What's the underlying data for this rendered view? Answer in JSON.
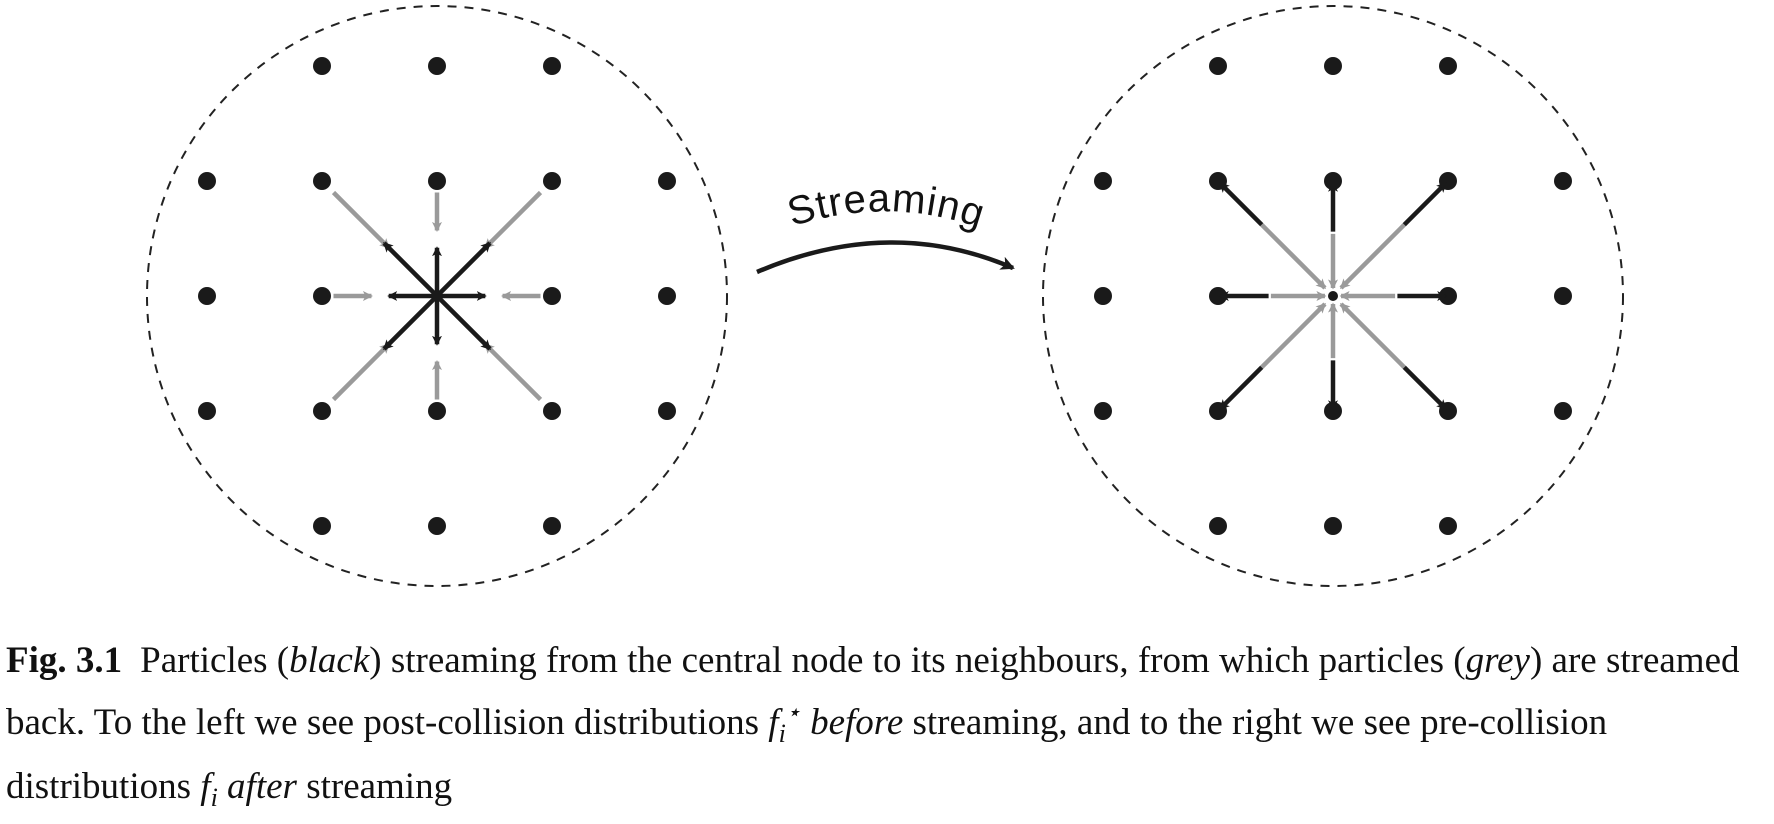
{
  "diagram": {
    "streaming_label": "Streaming",
    "colors": {
      "particle": "#1a1a1a",
      "black_arrow": "#1a1a1a",
      "grey_arrow": "#9a9a9a",
      "circle": "#222222"
    },
    "lattice": "D2Q9 neighbourhood (5x5 node grid per panel)",
    "panels": [
      {
        "name": "left",
        "state": "post-collision, before streaming"
      },
      {
        "name": "right",
        "state": "pre-collision, after streaming"
      }
    ]
  },
  "caption": {
    "label": "Fig. 3.1",
    "t1": "Particles (",
    "black_word": "black",
    "t2": ") streaming from the central node to its neighbours, from which particles (",
    "grey_word": "grey",
    "t3": ") are streamed back. To the left we see post-collision distributions ",
    "f_symbol": "f",
    "f_subscript": "i",
    "f_superscript": "⋆",
    "before_word": "before",
    "t4": " streaming, and to the right we see pre-collision distributions ",
    "f2_symbol": "f",
    "f2_subscript": "i",
    "after_word": "after",
    "t5": " streaming"
  }
}
